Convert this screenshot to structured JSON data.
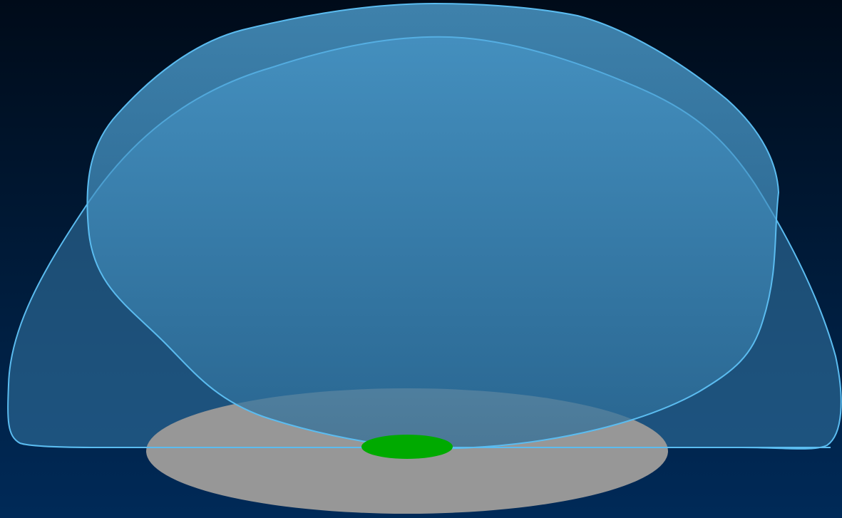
{
  "colors": {
    "background_top": "#000b19",
    "background_bottom": "#002a58",
    "lobe_outline": "#5bbcf0",
    "front_lobe_fill_top": "#56afe4",
    "front_lobe_fill_bottom": "#2d6c96",
    "back_lobe_fill": "#2f6f9c",
    "ground_disc": "#979797",
    "antenna_base": "#00aa00"
  },
  "shapes": [
    "background",
    "back-radiation-lobe",
    "ground-disc",
    "front-radiation-lobe",
    "ground-line",
    "antenna-base"
  ]
}
